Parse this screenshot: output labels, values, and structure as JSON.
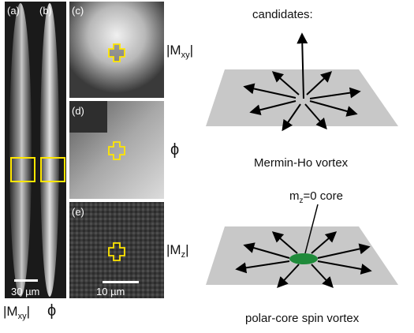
{
  "panels": {
    "a": {
      "label": "(a)"
    },
    "b": {
      "label": "(b)"
    },
    "c": {
      "label": "(c)"
    },
    "d": {
      "label": "(d)"
    },
    "e": {
      "label": "(e)"
    }
  },
  "scalebars": {
    "left": "30 µm",
    "right": "10 µm"
  },
  "quantities": {
    "c": {
      "base": "|M",
      "sub": "xy",
      "close": "|"
    },
    "d": {
      "symbol": "ϕ"
    },
    "e": {
      "base": "|M",
      "sub": "z",
      "close": "|"
    },
    "bottom_a": {
      "base": "|M",
      "sub": "xy",
      "close": "|"
    },
    "bottom_b": {
      "symbol": "ϕ"
    }
  },
  "diagram": {
    "heading": "candidates:",
    "top_caption": "Mermin-Ho vortex",
    "core_label": {
      "base": "m",
      "sub": "z",
      "rest": "=0 core"
    },
    "bottom_caption": "polar-core spin vortex"
  },
  "colors": {
    "box": "#ffe600",
    "plane": "#c8c8c8",
    "core": "#1f8a3a",
    "arrow": "#000000"
  }
}
